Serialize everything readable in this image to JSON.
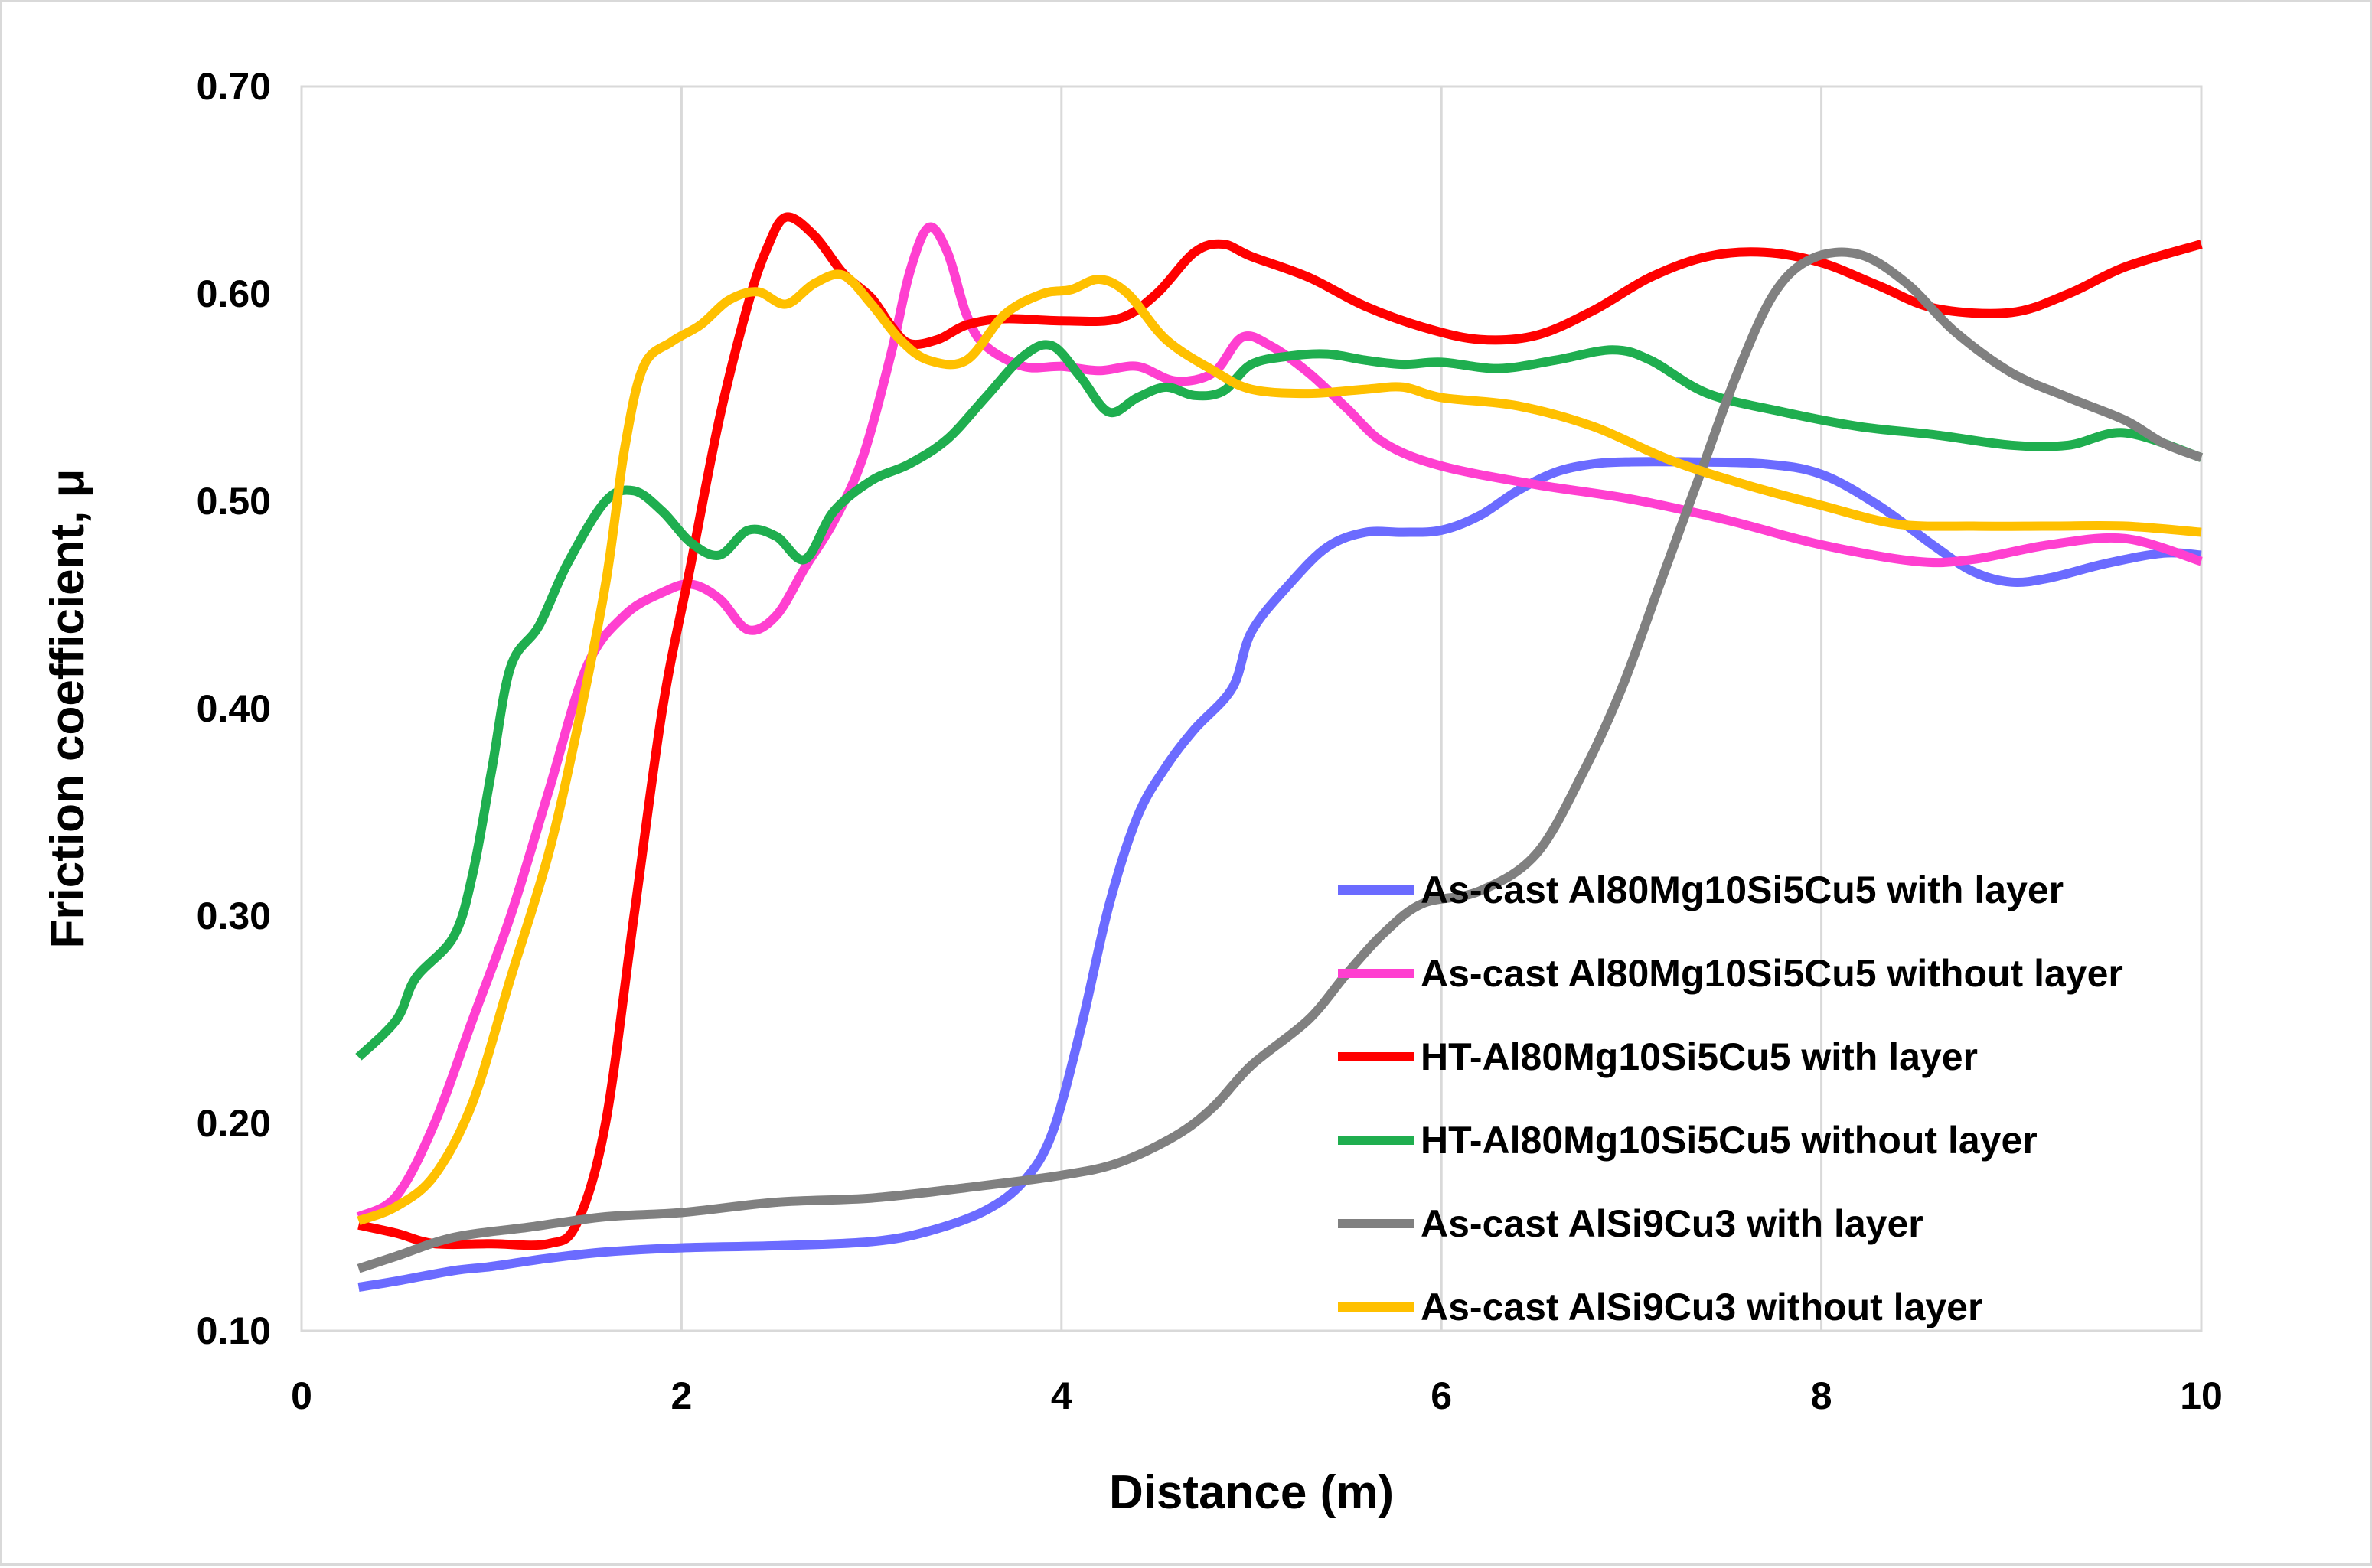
{
  "chart_data": {
    "type": "line",
    "title": "",
    "xlabel": "Distance (m)",
    "ylabel": "Friction coefficient, μ",
    "xlim": [
      0,
      10
    ],
    "ylim": [
      0.1,
      0.7
    ],
    "grid": "vertical",
    "legend_position": "bottom-right inside",
    "x_ticks": [
      {
        "value": 0,
        "label": "0"
      },
      {
        "value": 2,
        "label": "2"
      },
      {
        "value": 4,
        "label": "4"
      },
      {
        "value": 6,
        "label": "6"
      },
      {
        "value": 8,
        "label": "8"
      },
      {
        "value": 10,
        "label": "10"
      }
    ],
    "y_ticks": [
      {
        "value": 0.1,
        "label": "0.10"
      },
      {
        "value": 0.2,
        "label": "0.20"
      },
      {
        "value": 0.3,
        "label": "0.30"
      },
      {
        "value": 0.4,
        "label": "0.40"
      },
      {
        "value": 0.5,
        "label": "0.50"
      },
      {
        "value": 0.6,
        "label": "0.60"
      },
      {
        "value": 0.7,
        "label": "0.70"
      }
    ],
    "series": [
      {
        "name": "As-cast Al80Mg10Si5Cu5 with layer",
        "color": "#6b6bff",
        "x": [
          0.3,
          0.5,
          0.8,
          1.0,
          1.3,
          1.6,
          2.0,
          2.5,
          3.0,
          3.3,
          3.6,
          3.8,
          3.95,
          4.1,
          4.25,
          4.4,
          4.55,
          4.7,
          4.9,
          5.0,
          5.2,
          5.4,
          5.6,
          5.8,
          6.0,
          6.2,
          6.4,
          6.6,
          6.8,
          7.0,
          7.3,
          7.7,
          8.0,
          8.3,
          8.6,
          8.8,
          9.0,
          9.2,
          9.5,
          9.8,
          10.0
        ],
        "y": [
          0.121,
          0.124,
          0.129,
          0.131,
          0.135,
          0.138,
          0.14,
          0.141,
          0.143,
          0.148,
          0.158,
          0.172,
          0.195,
          0.245,
          0.305,
          0.348,
          0.372,
          0.39,
          0.41,
          0.437,
          0.46,
          0.478,
          0.485,
          0.485,
          0.486,
          0.493,
          0.505,
          0.514,
          0.518,
          0.519,
          0.519,
          0.518,
          0.513,
          0.498,
          0.478,
          0.466,
          0.461,
          0.463,
          0.47,
          0.475,
          0.474
        ]
      },
      {
        "name": "As-cast Al80Mg10Si5Cu5 without layer",
        "color": "#ff3fd0",
        "x": [
          0.3,
          0.5,
          0.7,
          0.9,
          1.1,
          1.3,
          1.5,
          1.7,
          1.9,
          2.05,
          2.2,
          2.35,
          2.5,
          2.65,
          2.8,
          2.95,
          3.1,
          3.2,
          3.3,
          3.4,
          3.5,
          3.6,
          3.8,
          4.0,
          4.2,
          4.4,
          4.6,
          4.8,
          4.95,
          5.1,
          5.3,
          5.5,
          5.7,
          6.0,
          6.5,
          7.0,
          7.5,
          8.0,
          8.5,
          8.8,
          9.2,
          9.6,
          10.0
        ],
        "y": [
          0.155,
          0.165,
          0.2,
          0.25,
          0.3,
          0.36,
          0.42,
          0.445,
          0.456,
          0.46,
          0.453,
          0.438,
          0.445,
          0.468,
          0.49,
          0.52,
          0.57,
          0.61,
          0.632,
          0.62,
          0.59,
          0.575,
          0.565,
          0.565,
          0.563,
          0.565,
          0.558,
          0.562,
          0.579,
          0.575,
          0.562,
          0.545,
          0.528,
          0.517,
          0.508,
          0.501,
          0.491,
          0.479,
          0.471,
          0.472,
          0.479,
          0.482,
          0.471
        ]
      },
      {
        "name": "HT-Al80Mg10Si5Cu5 with layer",
        "color": "#ff0000",
        "x": [
          0.3,
          0.5,
          0.7,
          1.0,
          1.3,
          1.45,
          1.6,
          1.75,
          1.9,
          2.05,
          2.2,
          2.35,
          2.45,
          2.55,
          2.7,
          2.85,
          3.0,
          3.1,
          3.2,
          3.35,
          3.5,
          3.7,
          4.0,
          4.3,
          4.5,
          4.7,
          4.85,
          5.0,
          5.3,
          5.6,
          5.9,
          6.2,
          6.5,
          6.8,
          7.1,
          7.4,
          7.7,
          8.0,
          8.3,
          8.6,
          9.0,
          9.3,
          9.6,
          10.0
        ],
        "y": [
          0.151,
          0.147,
          0.142,
          0.142,
          0.142,
          0.152,
          0.2,
          0.3,
          0.4,
          0.47,
          0.54,
          0.595,
          0.622,
          0.637,
          0.628,
          0.61,
          0.598,
          0.585,
          0.576,
          0.578,
          0.585,
          0.588,
          0.587,
          0.588,
          0.6,
          0.62,
          0.624,
          0.618,
          0.608,
          0.594,
          0.584,
          0.578,
          0.58,
          0.592,
          0.608,
          0.618,
          0.62,
          0.615,
          0.604,
          0.593,
          0.591,
          0.6,
          0.613,
          0.624
        ]
      },
      {
        "name": "HT-Al80Mg10Si5Cu5 without layer",
        "color": "#1fae4f",
        "x": [
          0.3,
          0.5,
          0.6,
          0.8,
          0.9,
          1.0,
          1.1,
          1.25,
          1.4,
          1.6,
          1.75,
          1.9,
          2.05,
          2.2,
          2.35,
          2.5,
          2.65,
          2.8,
          3.0,
          3.2,
          3.4,
          3.6,
          3.8,
          3.95,
          4.1,
          4.25,
          4.4,
          4.55,
          4.7,
          4.85,
          5.0,
          5.2,
          5.4,
          5.6,
          5.8,
          6.0,
          6.3,
          6.6,
          6.9,
          7.1,
          7.4,
          7.8,
          8.2,
          8.6,
          9.0,
          9.3,
          9.6,
          10.0
        ],
        "y": [
          0.232,
          0.25,
          0.27,
          0.29,
          0.32,
          0.37,
          0.42,
          0.44,
          0.47,
          0.5,
          0.505,
          0.495,
          0.48,
          0.474,
          0.486,
          0.483,
          0.472,
          0.495,
          0.51,
          0.518,
          0.53,
          0.55,
          0.57,
          0.575,
          0.56,
          0.543,
          0.55,
          0.555,
          0.551,
          0.553,
          0.566,
          0.57,
          0.571,
          0.568,
          0.566,
          0.567,
          0.564,
          0.568,
          0.573,
          0.568,
          0.552,
          0.543,
          0.536,
          0.532,
          0.527,
          0.527,
          0.533,
          0.521
        ]
      },
      {
        "name": "As-cast AlSi9Cu3 with layer",
        "color": "#808080",
        "x": [
          0.3,
          0.5,
          0.8,
          1.2,
          1.6,
          2.0,
          2.5,
          3.0,
          3.5,
          4.0,
          4.3,
          4.6,
          4.8,
          5.0,
          5.3,
          5.5,
          5.7,
          5.9,
          6.2,
          6.5,
          6.75,
          6.95,
          7.15,
          7.35,
          7.55,
          7.75,
          7.95,
          8.2,
          8.45,
          8.7,
          9.0,
          9.3,
          9.6,
          9.8,
          10.0
        ],
        "y": [
          0.13,
          0.136,
          0.145,
          0.15,
          0.155,
          0.157,
          0.162,
          0.164,
          0.169,
          0.175,
          0.181,
          0.194,
          0.208,
          0.228,
          0.25,
          0.272,
          0.292,
          0.306,
          0.312,
          0.33,
          0.37,
          0.41,
          0.46,
          0.51,
          0.56,
          0.6,
          0.617,
          0.619,
          0.605,
          0.582,
          0.562,
          0.55,
          0.539,
          0.528,
          0.521
        ]
      },
      {
        "name": "As-cast AlSi9Cu3 without layer",
        "color": "#ffc000",
        "x": [
          0.3,
          0.5,
          0.7,
          0.9,
          1.1,
          1.3,
          1.45,
          1.6,
          1.7,
          1.8,
          1.95,
          2.1,
          2.25,
          2.4,
          2.55,
          2.7,
          2.85,
          3.0,
          3.15,
          3.3,
          3.5,
          3.7,
          3.9,
          4.05,
          4.2,
          4.35,
          4.55,
          4.8,
          5.0,
          5.3,
          5.6,
          5.8,
          6.0,
          6.4,
          6.8,
          7.2,
          7.6,
          8.0,
          8.4,
          8.8,
          9.2,
          9.6,
          10.0
        ],
        "y": [
          0.153,
          0.16,
          0.175,
          0.21,
          0.27,
          0.33,
          0.39,
          0.46,
          0.525,
          0.565,
          0.577,
          0.585,
          0.597,
          0.601,
          0.595,
          0.605,
          0.609,
          0.595,
          0.578,
          0.568,
          0.568,
          0.59,
          0.6,
          0.602,
          0.607,
          0.6,
          0.578,
          0.563,
          0.554,
          0.552,
          0.554,
          0.555,
          0.55,
          0.546,
          0.536,
          0.52,
          0.508,
          0.498,
          0.489,
          0.488,
          0.488,
          0.488,
          0.485
        ]
      }
    ]
  }
}
